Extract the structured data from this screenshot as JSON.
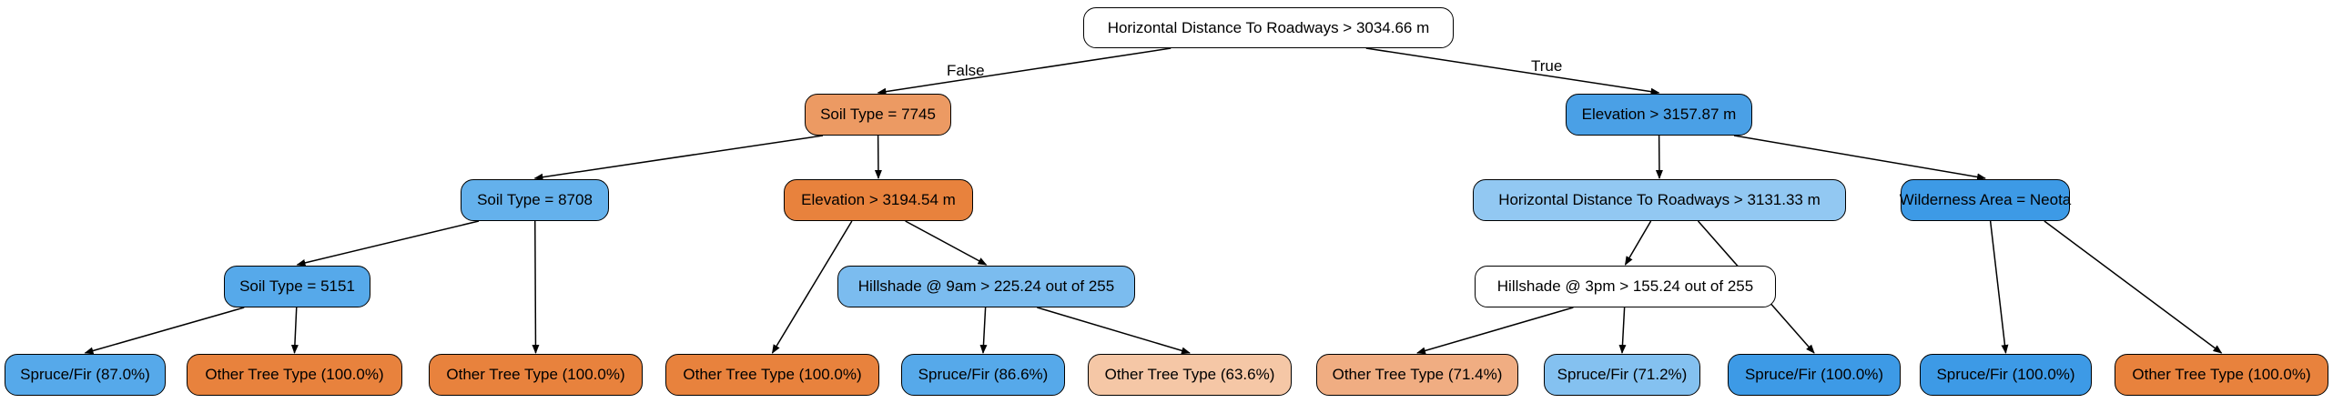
{
  "tree": {
    "nodes": {
      "root": {
        "label": "Horizontal Distance To Roadways > 3034.66 m",
        "fill": "#ffffff"
      },
      "soil7745": {
        "label": "Soil Type = 7745",
        "fill": "#ec9a63"
      },
      "elev3157": {
        "label": "Elevation > 3157.87 m",
        "fill": "#4aa0e6"
      },
      "soil8708": {
        "label": "Soil Type = 8708",
        "fill": "#64b1ec"
      },
      "elev3194": {
        "label": "Elevation > 3194.54 m",
        "fill": "#e8823d"
      },
      "hdr3131": {
        "label": "Horizontal Distance To Roadways > 3131.33 m",
        "fill": "#92c8f2"
      },
      "wild": {
        "label": "Wilderness Area = Neota",
        "fill": "#3d9ae6"
      },
      "soil5151": {
        "label": "Soil Type = 5151",
        "fill": "#56a9ea"
      },
      "hill9am": {
        "label": "Hillshade @ 9am > 225.24 out of 255",
        "fill": "#7bbcef"
      },
      "hill3pm": {
        "label": "Hillshade @ 3pm > 155.24 out of 255",
        "fill": "#ffffff"
      },
      "leaf1": {
        "label": "Spruce/Fir (87.0%)",
        "fill": "#56a9ea"
      },
      "leaf2": {
        "label": "Other Tree Type (100.0%)",
        "fill": "#e8823d"
      },
      "leaf3": {
        "label": "Other Tree Type (100.0%)",
        "fill": "#e8823d"
      },
      "leaf4": {
        "label": "Other Tree Type (100.0%)",
        "fill": "#e8823d"
      },
      "leaf5": {
        "label": "Spruce/Fir (86.6%)",
        "fill": "#56a9ea"
      },
      "leaf6": {
        "label": "Other Tree Type (63.6%)",
        "fill": "#f5c7a6"
      },
      "leaf7": {
        "label": "Other Tree Type (71.4%)",
        "fill": "#f0ad82"
      },
      "leaf8": {
        "label": "Spruce/Fir (71.2%)",
        "fill": "#84c1f0"
      },
      "leaf9": {
        "label": "Spruce/Fir (100.0%)",
        "fill": "#3d9ae6"
      },
      "leaf10": {
        "label": "Spruce/Fir (100.0%)",
        "fill": "#3d9ae6"
      },
      "leaf11": {
        "label": "Other Tree Type (100.0%)",
        "fill": "#e8823d"
      }
    },
    "edges": [
      {
        "from": "root",
        "to": "soil7745",
        "label": "False"
      },
      {
        "from": "root",
        "to": "elev3157",
        "label": "True"
      },
      {
        "from": "soil7745",
        "to": "soil8708"
      },
      {
        "from": "soil7745",
        "to": "elev3194"
      },
      {
        "from": "soil8708",
        "to": "soil5151"
      },
      {
        "from": "soil8708",
        "to": "leaf3"
      },
      {
        "from": "soil5151",
        "to": "leaf1"
      },
      {
        "from": "soil5151",
        "to": "leaf2"
      },
      {
        "from": "elev3194",
        "to": "leaf4"
      },
      {
        "from": "elev3194",
        "to": "hill9am"
      },
      {
        "from": "hill9am",
        "to": "leaf5"
      },
      {
        "from": "hill9am",
        "to": "leaf6"
      },
      {
        "from": "elev3157",
        "to": "hdr3131"
      },
      {
        "from": "elev3157",
        "to": "wild"
      },
      {
        "from": "hdr3131",
        "to": "hill3pm"
      },
      {
        "from": "hdr3131",
        "to": "leaf9"
      },
      {
        "from": "hill3pm",
        "to": "leaf7"
      },
      {
        "from": "hill3pm",
        "to": "leaf8"
      },
      {
        "from": "wild",
        "to": "leaf10"
      },
      {
        "from": "wild",
        "to": "leaf11"
      }
    ]
  }
}
